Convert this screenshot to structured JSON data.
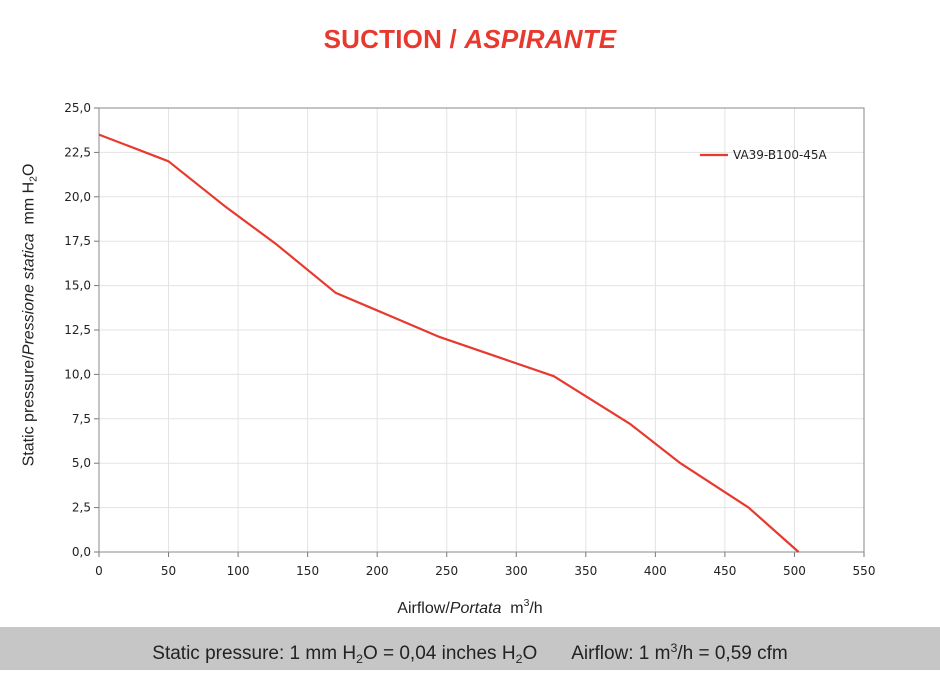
{
  "title": {
    "main": "SUCTION / ",
    "italic": "ASPIRANTE"
  },
  "chart_data": {
    "type": "line",
    "title": "SUCTION / ASPIRANTE",
    "xlabel": "Airflow / Portata m³/h",
    "ylabel": "Static pressure / Pressione statica mm H₂O",
    "xlim": [
      0,
      550
    ],
    "ylim": [
      0,
      25
    ],
    "x_ticks": [
      "0",
      "50",
      "100",
      "150",
      "200",
      "250",
      "300",
      "350",
      "400",
      "450",
      "500",
      "550"
    ],
    "y_ticks": [
      "0,0",
      "2,5",
      "5,0",
      "7,5",
      "10,0",
      "12,5",
      "15,0",
      "17,5",
      "20,0",
      "22,5",
      "25,0"
    ],
    "grid": true,
    "legend_position": "top-right",
    "series": [
      {
        "name": "VA39-B100-45A",
        "color": "#e8392f",
        "x": [
          0,
          50,
          90,
          128,
          170,
          245,
          327,
          382,
          418,
          467,
          503
        ],
        "y": [
          23.5,
          22.0,
          19.5,
          17.3,
          14.6,
          12.1,
          9.9,
          7.2,
          5.0,
          2.5,
          0.0
        ]
      }
    ]
  },
  "axis_labels": {
    "x_main": "Airflow",
    "x_slash": "/",
    "x_italic": "Portata",
    "x_unit_pre": "m",
    "x_unit_sup": "3",
    "x_unit_post": "/h",
    "y_main": "Static pressure",
    "y_slash": "/",
    "y_italic": "Pressione statica",
    "y_unit_pre": "mm H",
    "y_unit_sub": "2",
    "y_unit_post": "O"
  },
  "footer": {
    "p1": "Static pressure: 1 mm H",
    "p1_sub": "2",
    "p2": "O = 0,04 inches H",
    "p2_sub": "2",
    "p3": "O",
    "q1": "Airflow: 1 m",
    "q1_sup": "3",
    "q2": "/h = 0,59 cfm"
  }
}
